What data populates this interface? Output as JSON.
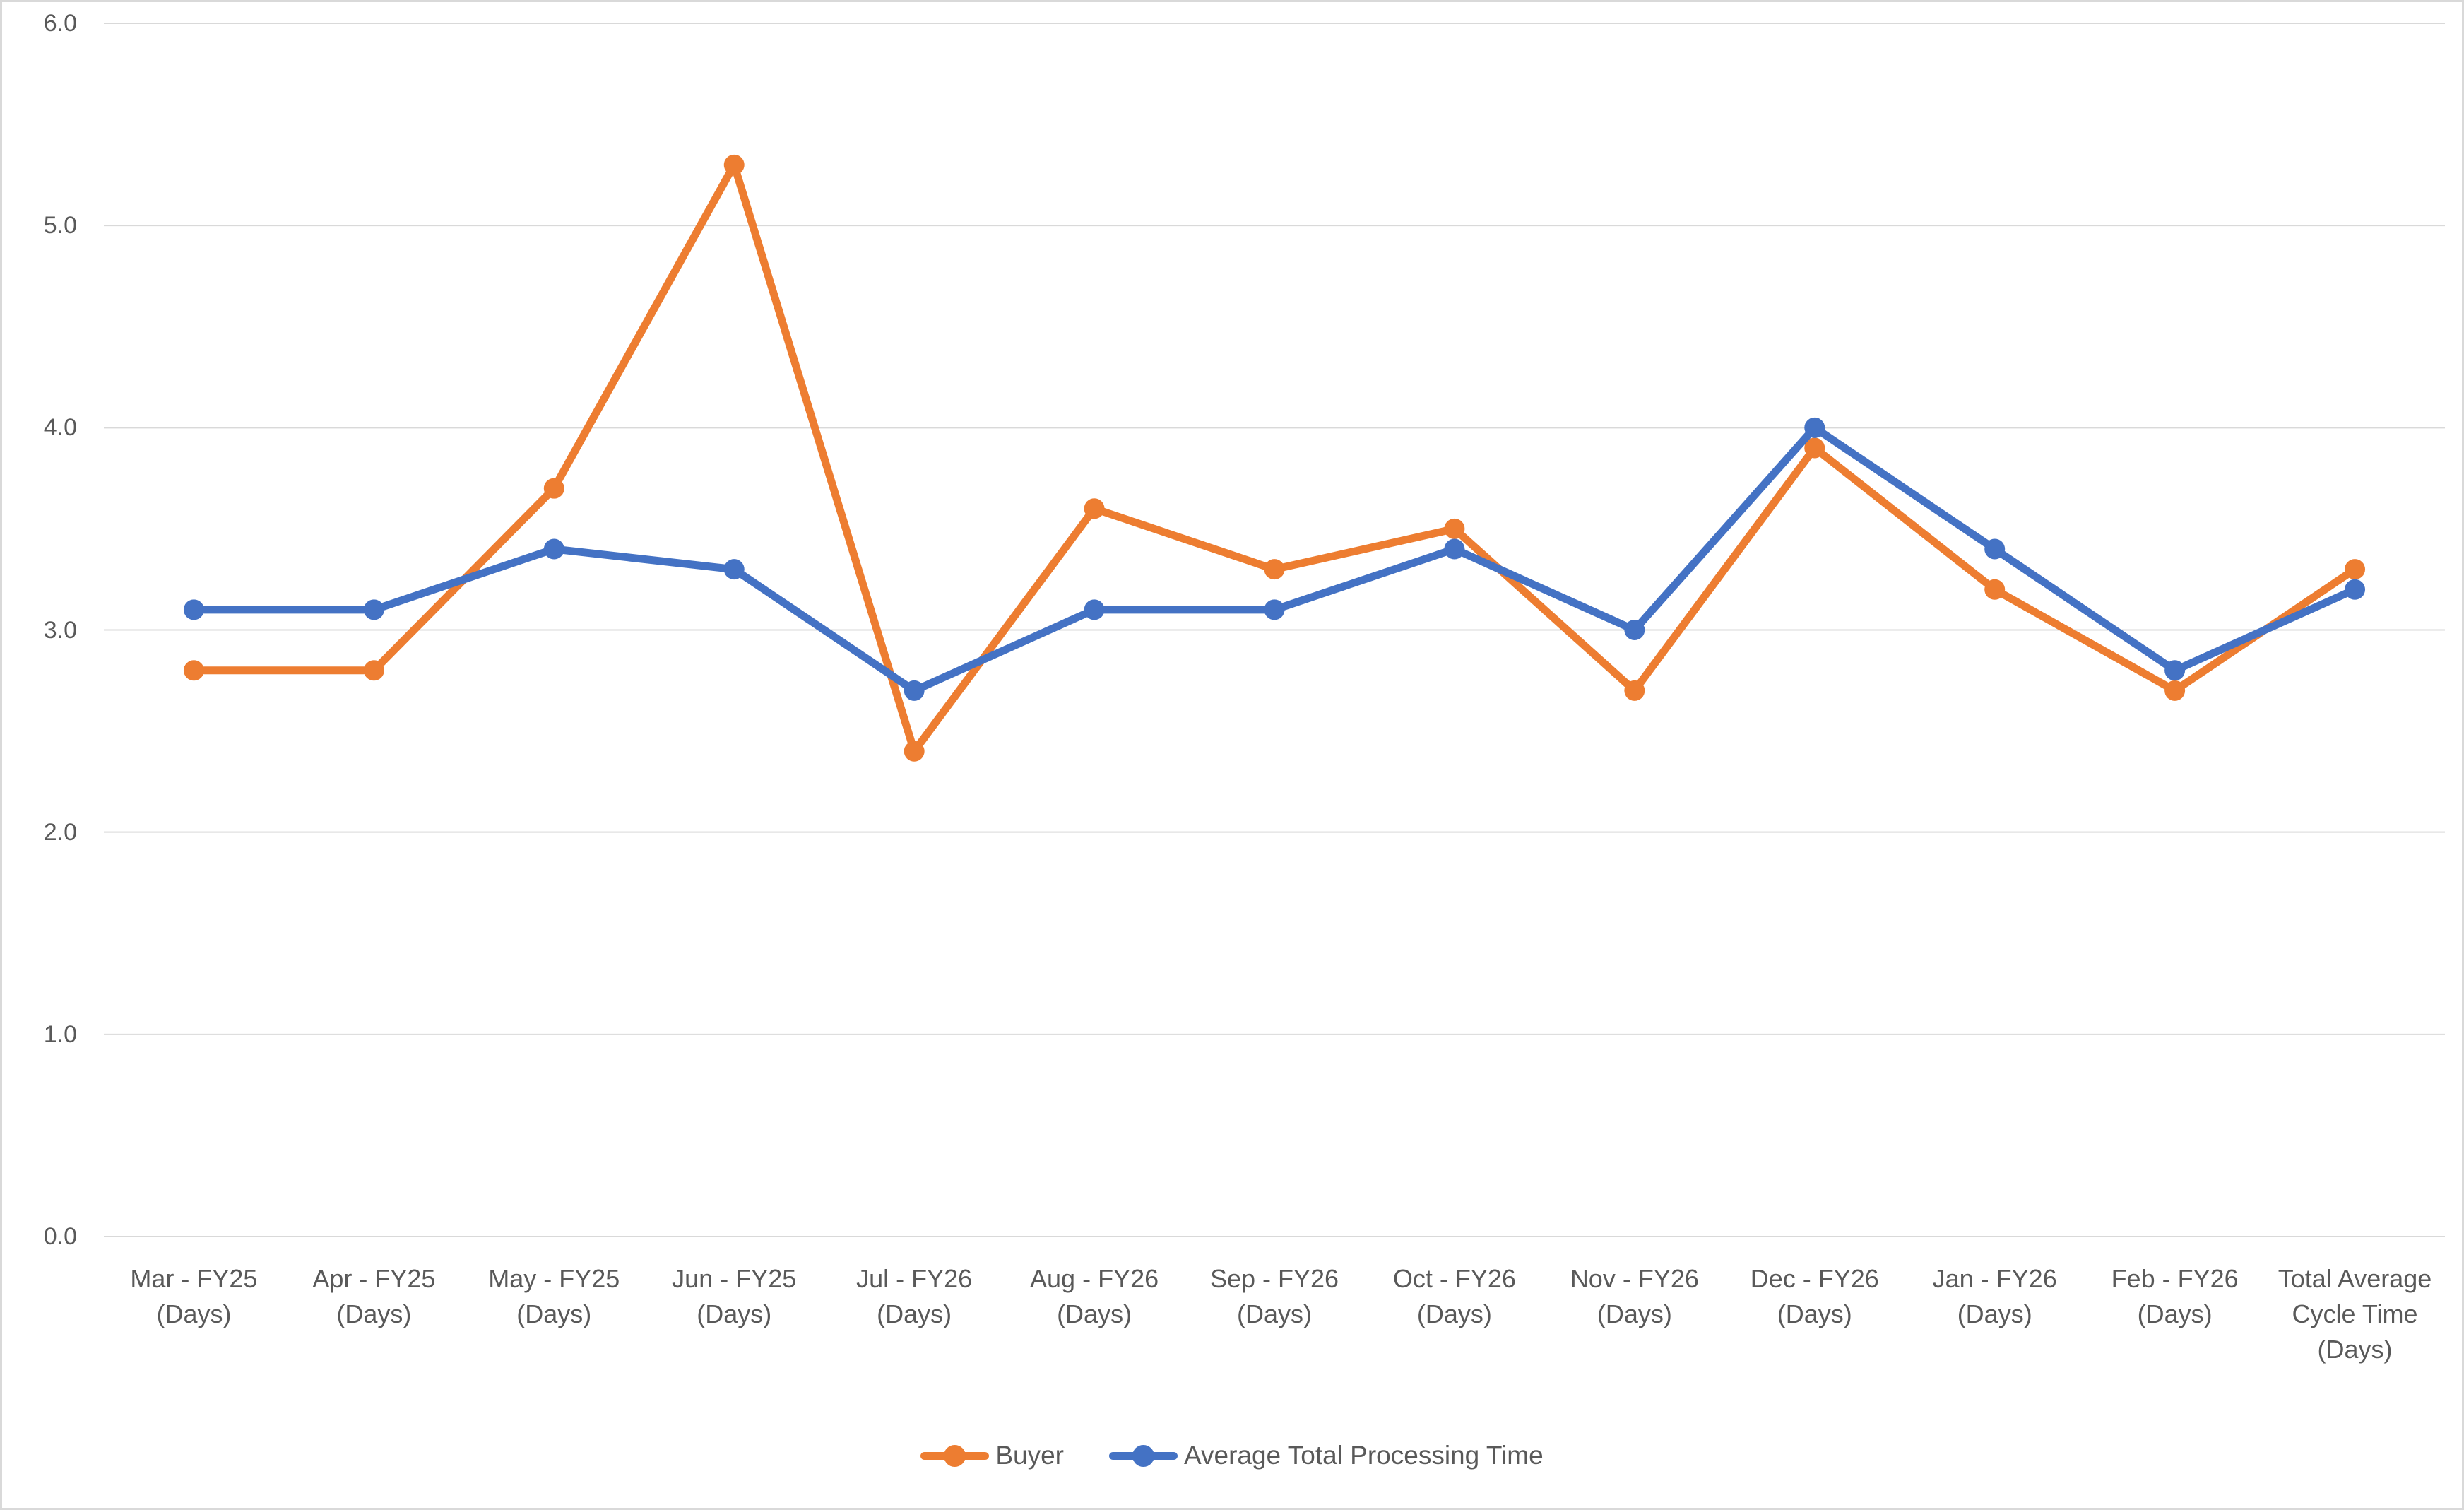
{
  "chart_data": {
    "type": "line",
    "title": "",
    "categories": [
      [
        "Mar - FY25",
        "(Days)"
      ],
      [
        "Apr - FY25",
        "(Days)"
      ],
      [
        "May - FY25",
        "(Days)"
      ],
      [
        "Jun - FY25",
        "(Days)"
      ],
      [
        "Jul - FY26",
        "(Days)"
      ],
      [
        "Aug - FY26",
        "(Days)"
      ],
      [
        "Sep - FY26",
        "(Days)"
      ],
      [
        "Oct - FY26",
        "(Days)"
      ],
      [
        "Nov - FY26",
        "(Days)"
      ],
      [
        "Dec - FY26",
        "(Days)"
      ],
      [
        "Jan - FY26",
        "(Days)"
      ],
      [
        "Feb - FY26",
        "(Days)"
      ],
      [
        "Total Average",
        "Cycle Time",
        "(Days)"
      ]
    ],
    "series": [
      {
        "name": "Buyer",
        "color": "#ED7D31",
        "values": [
          2.8,
          2.8,
          3.7,
          5.3,
          2.4,
          3.6,
          3.3,
          3.5,
          2.7,
          3.9,
          3.2,
          2.7,
          3.3
        ]
      },
      {
        "name": "Average Total Processing Time",
        "color": "#4472C4",
        "values": [
          3.1,
          3.1,
          3.4,
          3.3,
          2.7,
          3.1,
          3.1,
          3.4,
          3.0,
          4.0,
          3.4,
          2.8,
          3.2
        ]
      }
    ],
    "ylim": [
      0,
      6
    ],
    "ytick_step": 1.0,
    "ytick_labels": [
      "0.0",
      "1.0",
      "2.0",
      "3.0",
      "4.0",
      "5.0",
      "6.0"
    ],
    "grid": true,
    "grid_color": "#D9D9D9",
    "text_color": "#595959",
    "legend_position": "bottom"
  }
}
